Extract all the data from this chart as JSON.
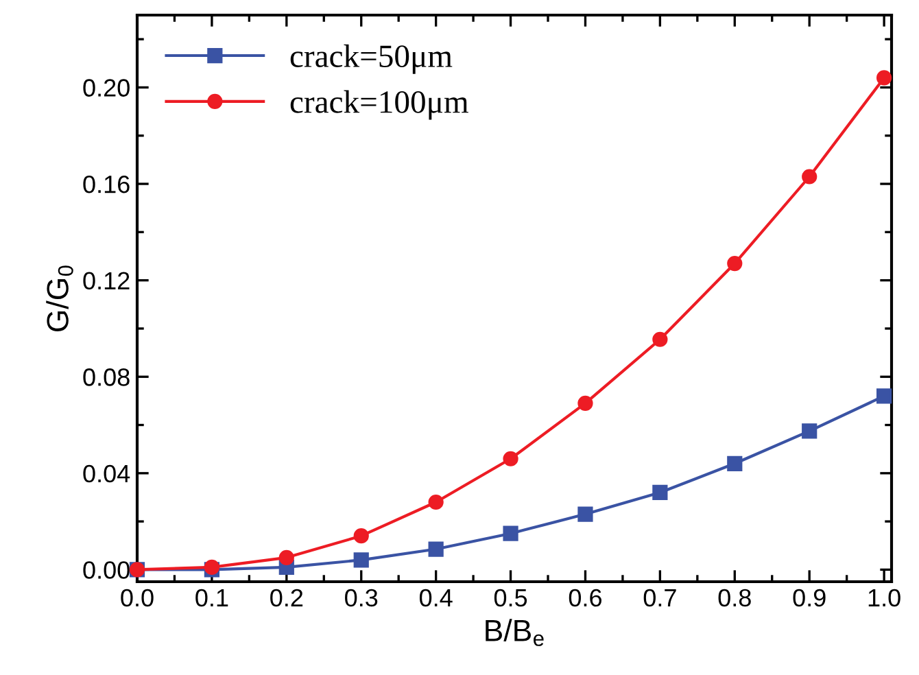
{
  "chart_data": {
    "type": "line",
    "xlabel": "B/B$_{e}$",
    "ylabel": "G/G$_{0}$",
    "x": [
      0.0,
      0.1,
      0.2,
      0.3,
      0.4,
      0.5,
      0.6,
      0.7,
      0.8,
      0.9,
      1.0
    ],
    "series": [
      {
        "name": "crack=50μm",
        "color": "#3a53a4",
        "marker": "square",
        "values": [
          0.0,
          0.0,
          0.001,
          0.004,
          0.0085,
          0.015,
          0.023,
          0.032,
          0.044,
          0.0575,
          0.072
        ]
      },
      {
        "name": "crack=100μm",
        "color": "#ed1c24",
        "marker": "circle",
        "values": [
          0.0,
          0.001,
          0.005,
          0.014,
          0.028,
          0.046,
          0.069,
          0.0955,
          0.127,
          0.163,
          0.204
        ]
      }
    ],
    "xlim": [
      0.0,
      1.01
    ],
    "ylim": [
      -0.005,
      0.23
    ],
    "xticks": [
      {
        "value": 0.0,
        "label": "0.0"
      },
      0.1,
      0.2,
      0.3,
      0.4,
      0.5,
      0.6,
      0.7,
      0.8,
      0.9,
      {
        "value": 1.0,
        "label": "1.0"
      }
    ],
    "yticks": [
      {
        "value": 0.0,
        "label": "0.00"
      },
      0.04,
      0.08,
      0.12,
      0.16,
      {
        "value": 0.2,
        "label": "0.20"
      }
    ],
    "grid": false,
    "legend": "top left",
    "line_style": "solid"
  }
}
